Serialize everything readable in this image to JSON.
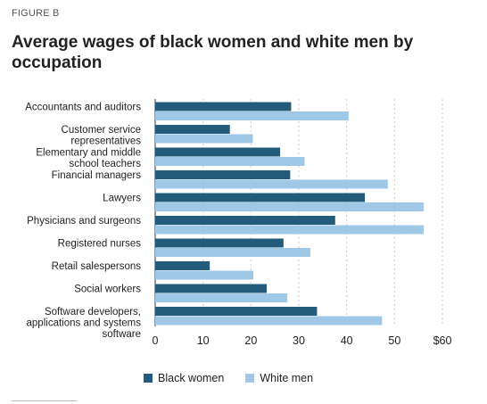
{
  "figure_label": "FIGURE B",
  "title": "Average wages of black women and white men by occupation",
  "colors": {
    "black_women": "#235c7a",
    "white_men": "#9fc7e6",
    "grid": "#c9c9c9",
    "text": "#222222"
  },
  "legend": [
    {
      "label": "Black women",
      "color": "#235c7a"
    },
    {
      "label": "White men",
      "color": "#9fc7e6"
    }
  ],
  "chart_data": {
    "type": "bar",
    "orientation": "horizontal",
    "categories": [
      "Accountants and auditors",
      "Customer service representatives",
      "Elementary and middle school teachers",
      "Financial managers",
      "Lawyers",
      "Physicians and surgeons",
      "Registered nurses",
      "Retail salespersons",
      "Social workers",
      "Software developers, applications and systems software"
    ],
    "category_lines": [
      [
        "Accountants and auditors"
      ],
      [
        "Customer service",
        "representatives"
      ],
      [
        "Elementary and middle",
        "school teachers"
      ],
      [
        "Financial managers"
      ],
      [
        "Lawyers"
      ],
      [
        "Physicians and surgeons"
      ],
      [
        "Registered nurses"
      ],
      [
        "Retail salespersons"
      ],
      [
        "Social workers"
      ],
      [
        "Software developers,",
        "applications and systems",
        "software"
      ]
    ],
    "series": [
      {
        "name": "Black women",
        "values": [
          28.4,
          15.6,
          26.1,
          28.2,
          43.8,
          37.6,
          26.8,
          11.4,
          23.3,
          33.8
        ]
      },
      {
        "name": "White men",
        "values": [
          40.4,
          20.4,
          31.2,
          48.6,
          56.1,
          56.1,
          32.4,
          20.5,
          27.6,
          47.4
        ]
      }
    ],
    "xticks": [
      "0",
      "10",
      "20",
      "30",
      "40",
      "50",
      "$60"
    ],
    "xlim": [
      0,
      60
    ],
    "xlabel": "",
    "ylabel": "",
    "grid": "vertical dashed",
    "legend_position": "bottom"
  }
}
